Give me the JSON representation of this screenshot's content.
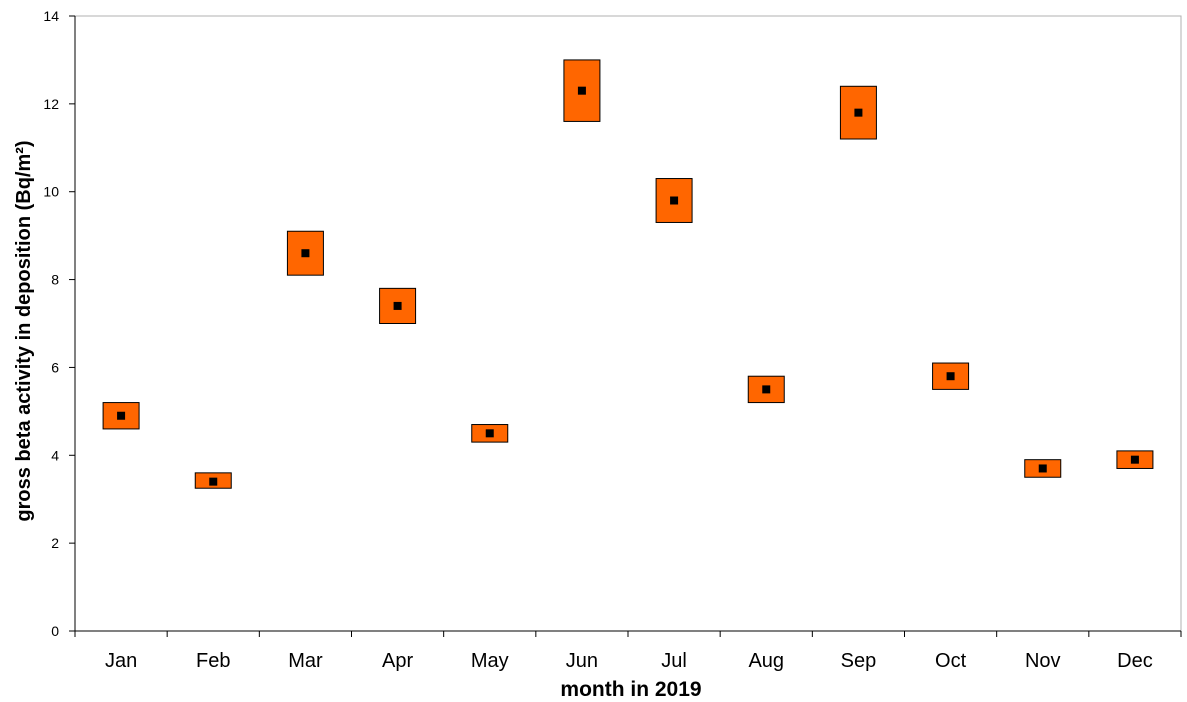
{
  "chart_data": {
    "type": "scatter",
    "xlabel": "month in 2019",
    "ylabel": "gross beta activity in deposition (Bq/m²)",
    "ylim": [
      0,
      14
    ],
    "yticks": [
      0,
      2,
      4,
      6,
      8,
      10,
      12,
      14
    ],
    "categories": [
      "Jan",
      "Feb",
      "Mar",
      "Apr",
      "May",
      "Jun",
      "Jul",
      "Aug",
      "Sep",
      "Oct",
      "Nov",
      "Dec"
    ],
    "values": [
      4.9,
      3.4,
      8.6,
      7.4,
      4.5,
      12.3,
      9.8,
      5.5,
      11.8,
      5.8,
      3.7,
      3.9
    ],
    "uncertainty_low": [
      4.6,
      3.25,
      8.1,
      7.0,
      4.3,
      11.6,
      9.3,
      5.2,
      11.2,
      5.5,
      3.5,
      3.7
    ],
    "uncertainty_high": [
      5.2,
      3.6,
      9.1,
      7.8,
      4.7,
      13.0,
      10.3,
      5.8,
      12.4,
      6.1,
      3.9,
      4.1
    ],
    "grid": false,
    "legend": "none",
    "colors": {
      "box_fill": "#FF6600",
      "marker": "#000000",
      "axis": "#000000"
    }
  }
}
